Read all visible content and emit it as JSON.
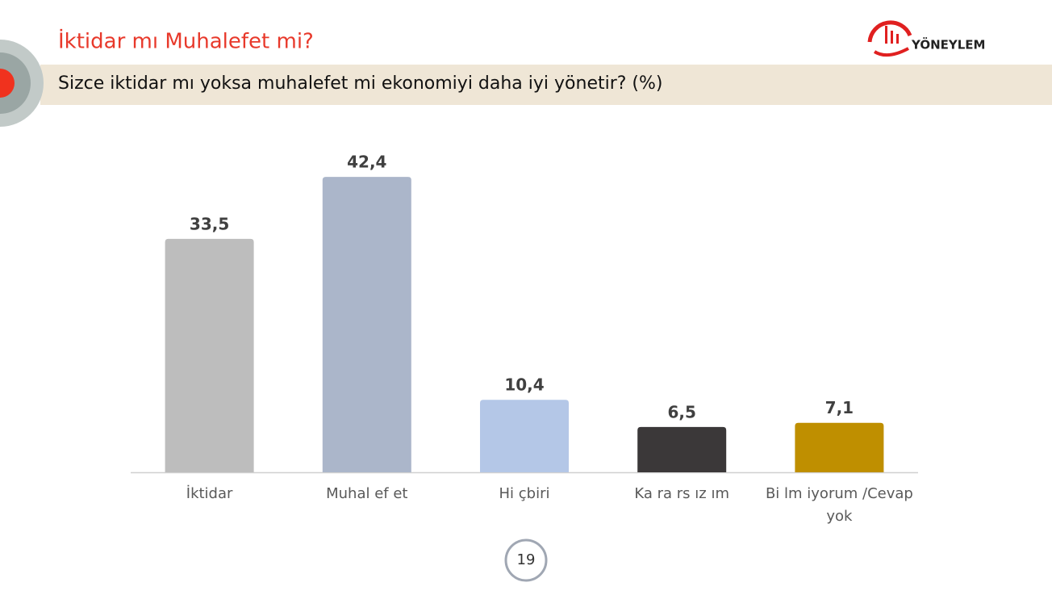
{
  "title": "İktidar mı Muhalefet mi?",
  "logo": "YÖNEYLEM",
  "page_number": "19",
  "chart_data": {
    "type": "bar",
    "title": "Sizce iktidar mı yoksa muhalefet mi ekonomiyi daha iyi yönetir? (%)",
    "categories": [
      "İktidar",
      "Muhal ef et",
      "Hi çbiri",
      "Ka ra rs ız ım",
      "Bi lm iyorum /Cevap yok"
    ],
    "values": [
      33.5,
      42.4,
      10.4,
      6.5,
      7.1
    ],
    "value_labels": [
      "33,5",
      "42,4",
      "10,4",
      "6,5",
      "7,1"
    ],
    "colors": [
      "#bdbdbd",
      "#abb6ca",
      "#b4c7e7",
      "#3b3839",
      "#bf8f00"
    ]
  }
}
